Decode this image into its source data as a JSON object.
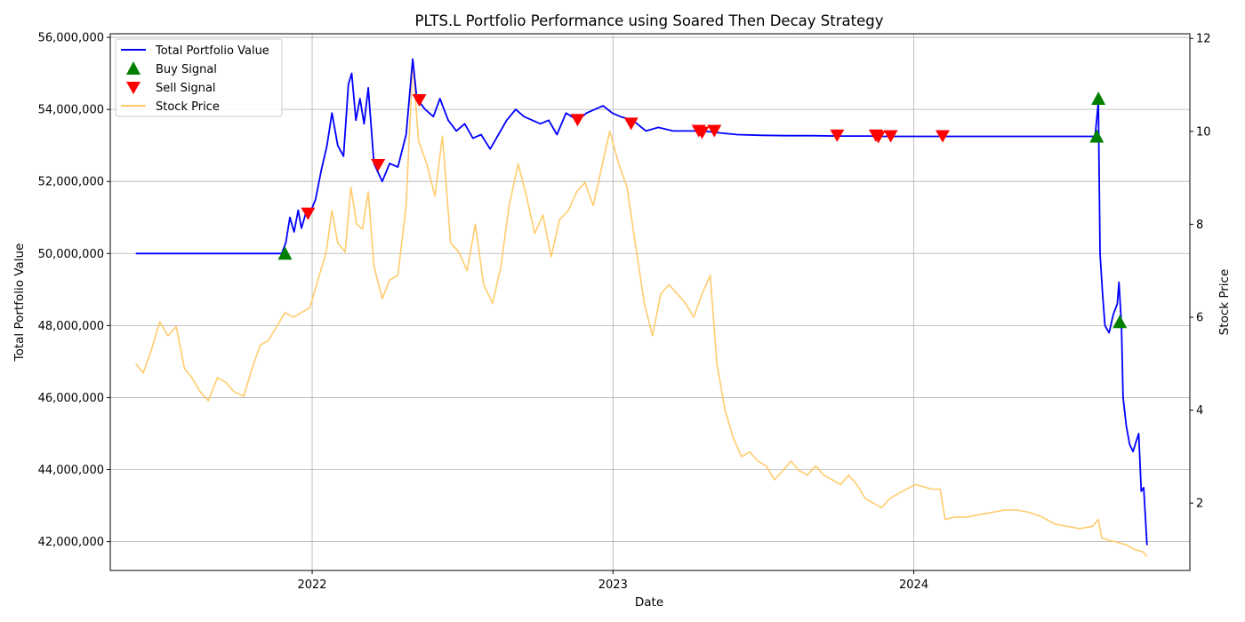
{
  "chart_data": {
    "type": "line",
    "title": "PLTS.L Portfolio Performance using Soared Then Decay Strategy",
    "xlabel": "Date",
    "ylabel_left": "Total Portfolio Value",
    "ylabel_right": "Stock Price",
    "x_ticks": [
      "2022",
      "2023",
      "2024"
    ],
    "x_range": [
      "2021-05-01",
      "2024-12-01"
    ],
    "ylim_left": [
      41200000,
      56100000
    ],
    "ylim_right": [
      0.55,
      12.1
    ],
    "y_ticks_left": [
      {
        "value": 42000000,
        "label": "42,000,000"
      },
      {
        "value": 44000000,
        "label": "44,000,000"
      },
      {
        "value": 46000000,
        "label": "46,000,000"
      },
      {
        "value": 48000000,
        "label": "48,000,000"
      },
      {
        "value": 50000000,
        "label": "50,000,000"
      },
      {
        "value": 52000000,
        "label": "52,000,000"
      },
      {
        "value": 54000000,
        "label": "54,000,000"
      },
      {
        "value": 56000000,
        "label": "56,000,000"
      }
    ],
    "y_ticks_right": [
      {
        "value": 2,
        "label": "2"
      },
      {
        "value": 4,
        "label": "4"
      },
      {
        "value": 6,
        "label": "6"
      },
      {
        "value": 8,
        "label": "8"
      },
      {
        "value": 10,
        "label": "10"
      },
      {
        "value": 12,
        "label": "12"
      }
    ],
    "grid": true,
    "legend_position": "top-left",
    "legend": [
      "Total Portfolio Value",
      "Buy Signal",
      "Sell Signal",
      "Stock Price"
    ],
    "colors": {
      "portfolio": "#0000ff",
      "stock": "#ffc966",
      "buy": "#008000",
      "sell": "#ff0000",
      "grid": "#b0b0b0"
    },
    "series": [
      {
        "name": "Total Portfolio Value",
        "axis": "left",
        "points": [
          [
            "2021-06-01",
            50000000
          ],
          [
            "2021-11-25",
            50000000
          ],
          [
            "2021-11-30",
            50300000
          ],
          [
            "2021-12-05",
            51000000
          ],
          [
            "2021-12-10",
            50600000
          ],
          [
            "2021-12-15",
            51200000
          ],
          [
            "2021-12-19",
            50700000
          ],
          [
            "2021-12-24",
            51100000
          ],
          [
            "2021-12-29",
            51100000
          ],
          [
            "2022-01-05",
            51500000
          ],
          [
            "2022-01-12",
            52300000
          ],
          [
            "2022-01-19",
            53000000
          ],
          [
            "2022-01-25",
            53900000
          ],
          [
            "2022-02-01",
            53000000
          ],
          [
            "2022-02-08",
            52700000
          ],
          [
            "2022-02-14",
            54700000
          ],
          [
            "2022-02-18",
            55000000
          ],
          [
            "2022-02-23",
            53700000
          ],
          [
            "2022-02-28",
            54300000
          ],
          [
            "2022-03-05",
            53600000
          ],
          [
            "2022-03-10",
            54600000
          ],
          [
            "2022-03-17",
            52500000
          ],
          [
            "2022-03-27",
            52000000
          ],
          [
            "2022-04-05",
            52500000
          ],
          [
            "2022-04-15",
            52400000
          ],
          [
            "2022-04-25",
            53300000
          ],
          [
            "2022-05-03",
            55400000
          ],
          [
            "2022-05-08",
            54300000
          ],
          [
            "2022-05-18",
            54000000
          ],
          [
            "2022-05-28",
            53800000
          ],
          [
            "2022-06-05",
            54300000
          ],
          [
            "2022-06-15",
            53700000
          ],
          [
            "2022-06-25",
            53400000
          ],
          [
            "2022-07-05",
            53600000
          ],
          [
            "2022-07-15",
            53200000
          ],
          [
            "2022-07-25",
            53300000
          ],
          [
            "2022-08-05",
            52900000
          ],
          [
            "2022-08-15",
            53300000
          ],
          [
            "2022-08-25",
            53700000
          ],
          [
            "2022-09-05",
            54000000
          ],
          [
            "2022-09-15",
            53800000
          ],
          [
            "2022-09-25",
            53700000
          ],
          [
            "2022-10-05",
            53600000
          ],
          [
            "2022-10-15",
            53700000
          ],
          [
            "2022-10-25",
            53300000
          ],
          [
            "2022-11-05",
            53900000
          ],
          [
            "2022-11-19",
            53700000
          ],
          [
            "2022-11-30",
            53900000
          ],
          [
            "2022-12-10",
            54000000
          ],
          [
            "2022-12-20",
            54100000
          ],
          [
            "2022-12-31",
            53900000
          ],
          [
            "2023-01-10",
            53800000
          ],
          [
            "2023-01-25",
            53700000
          ],
          [
            "2023-02-10",
            53400000
          ],
          [
            "2023-02-25",
            53500000
          ],
          [
            "2023-03-15",
            53400000
          ],
          [
            "2023-04-01",
            53400000
          ],
          [
            "2023-04-20",
            53400000
          ],
          [
            "2023-05-10",
            53350000
          ],
          [
            "2023-06-01",
            53300000
          ],
          [
            "2023-07-01",
            53280000
          ],
          [
            "2023-08-01",
            53270000
          ],
          [
            "2023-09-01",
            53270000
          ],
          [
            "2023-09-30",
            53260000
          ],
          [
            "2023-11-08",
            53260000
          ],
          [
            "2023-11-24",
            53250000
          ],
          [
            "2024-02-05",
            53250000
          ],
          [
            "2024-08-08",
            53250000
          ],
          [
            "2024-08-12",
            54200000
          ],
          [
            "2024-08-14",
            50000000
          ],
          [
            "2024-08-17",
            48900000
          ],
          [
            "2024-08-20",
            48000000
          ],
          [
            "2024-08-25",
            47800000
          ],
          [
            "2024-08-30",
            48300000
          ],
          [
            "2024-09-04",
            48600000
          ],
          [
            "2024-09-06",
            49200000
          ],
          [
            "2024-09-09",
            48000000
          ],
          [
            "2024-09-11",
            46000000
          ],
          [
            "2024-09-15",
            45200000
          ],
          [
            "2024-09-19",
            44700000
          ],
          [
            "2024-09-23",
            44500000
          ],
          [
            "2024-09-27",
            44800000
          ],
          [
            "2024-09-30",
            45000000
          ],
          [
            "2024-10-03",
            43400000
          ],
          [
            "2024-10-06",
            43500000
          ],
          [
            "2024-10-10",
            41900000
          ]
        ]
      },
      {
        "name": "Stock Price",
        "axis": "right",
        "points": [
          [
            "2021-06-01",
            5.0
          ],
          [
            "2021-06-10",
            4.8
          ],
          [
            "2021-06-20",
            5.3
          ],
          [
            "2021-06-30",
            5.9
          ],
          [
            "2021-07-10",
            5.6
          ],
          [
            "2021-07-20",
            5.8
          ],
          [
            "2021-07-30",
            4.9
          ],
          [
            "2021-08-08",
            4.7
          ],
          [
            "2021-08-18",
            4.4
          ],
          [
            "2021-08-28",
            4.2
          ],
          [
            "2021-09-08",
            4.7
          ],
          [
            "2021-09-18",
            4.6
          ],
          [
            "2021-09-28",
            4.4
          ],
          [
            "2021-10-10",
            4.3
          ],
          [
            "2021-10-20",
            4.9
          ],
          [
            "2021-10-30",
            5.4
          ],
          [
            "2021-11-09",
            5.5
          ],
          [
            "2021-11-19",
            5.8
          ],
          [
            "2021-11-29",
            6.1
          ],
          [
            "2021-12-09",
            6.0
          ],
          [
            "2021-12-19",
            6.1
          ],
          [
            "2021-12-29",
            6.2
          ],
          [
            "2022-01-08",
            6.8
          ],
          [
            "2022-01-18",
            7.4
          ],
          [
            "2022-01-25",
            8.3
          ],
          [
            "2022-02-01",
            7.6
          ],
          [
            "2022-02-10",
            7.4
          ],
          [
            "2022-02-17",
            8.8
          ],
          [
            "2022-02-24",
            8.0
          ],
          [
            "2022-03-03",
            7.9
          ],
          [
            "2022-03-10",
            8.7
          ],
          [
            "2022-03-17",
            7.1
          ],
          [
            "2022-03-27",
            6.4
          ],
          [
            "2022-04-05",
            6.8
          ],
          [
            "2022-04-15",
            6.9
          ],
          [
            "2022-04-25",
            8.4
          ],
          [
            "2022-05-03",
            11.5
          ],
          [
            "2022-05-10",
            9.8
          ],
          [
            "2022-05-20",
            9.3
          ],
          [
            "2022-05-30",
            8.6
          ],
          [
            "2022-06-08",
            9.9
          ],
          [
            "2022-06-18",
            7.6
          ],
          [
            "2022-06-28",
            7.4
          ],
          [
            "2022-07-08",
            7.0
          ],
          [
            "2022-07-18",
            8.0
          ],
          [
            "2022-07-28",
            6.7
          ],
          [
            "2022-08-08",
            6.3
          ],
          [
            "2022-08-18",
            7.1
          ],
          [
            "2022-08-28",
            8.4
          ],
          [
            "2022-09-08",
            9.3
          ],
          [
            "2022-09-18",
            8.6
          ],
          [
            "2022-09-28",
            7.8
          ],
          [
            "2022-10-08",
            8.2
          ],
          [
            "2022-10-18",
            7.3
          ],
          [
            "2022-10-28",
            8.1
          ],
          [
            "2022-11-08",
            8.3
          ],
          [
            "2022-11-18",
            8.7
          ],
          [
            "2022-11-28",
            8.9
          ],
          [
            "2022-12-08",
            8.4
          ],
          [
            "2022-12-18",
            9.2
          ],
          [
            "2022-12-28",
            10.0
          ],
          [
            "2023-01-08",
            9.3
          ],
          [
            "2023-01-18",
            8.8
          ],
          [
            "2023-01-28",
            7.6
          ],
          [
            "2023-02-08",
            6.3
          ],
          [
            "2023-02-18",
            5.6
          ],
          [
            "2023-02-28",
            6.5
          ],
          [
            "2023-03-10",
            6.7
          ],
          [
            "2023-03-20",
            6.5
          ],
          [
            "2023-03-30",
            6.3
          ],
          [
            "2023-04-09",
            6.0
          ],
          [
            "2023-04-19",
            6.5
          ],
          [
            "2023-04-29",
            6.9
          ],
          [
            "2023-05-07",
            5.0
          ],
          [
            "2023-05-17",
            4.0
          ],
          [
            "2023-05-27",
            3.4
          ],
          [
            "2023-06-06",
            3.0
          ],
          [
            "2023-06-16",
            3.1
          ],
          [
            "2023-06-26",
            2.9
          ],
          [
            "2023-07-06",
            2.8
          ],
          [
            "2023-07-16",
            2.5
          ],
          [
            "2023-07-26",
            2.7
          ],
          [
            "2023-08-05",
            2.9
          ],
          [
            "2023-08-15",
            2.7
          ],
          [
            "2023-08-25",
            2.6
          ],
          [
            "2023-09-04",
            2.8
          ],
          [
            "2023-09-14",
            2.6
          ],
          [
            "2023-09-24",
            2.5
          ],
          [
            "2023-10-04",
            2.4
          ],
          [
            "2023-10-14",
            2.6
          ],
          [
            "2023-10-24",
            2.4
          ],
          [
            "2023-11-03",
            2.1
          ],
          [
            "2023-11-13",
            2.0
          ],
          [
            "2023-11-23",
            1.9
          ],
          [
            "2023-12-03",
            2.1
          ],
          [
            "2023-12-13",
            2.2
          ],
          [
            "2023-12-23",
            2.3
          ],
          [
            "2024-01-03",
            2.4
          ],
          [
            "2024-01-13",
            2.35
          ],
          [
            "2024-01-23",
            2.3
          ],
          [
            "2024-02-02",
            2.3
          ],
          [
            "2024-02-08",
            1.65
          ],
          [
            "2024-02-20",
            1.7
          ],
          [
            "2024-03-05",
            1.7
          ],
          [
            "2024-03-20",
            1.75
          ],
          [
            "2024-04-05",
            1.8
          ],
          [
            "2024-04-20",
            1.85
          ],
          [
            "2024-05-05",
            1.85
          ],
          [
            "2024-05-20",
            1.8
          ],
          [
            "2024-06-05",
            1.7
          ],
          [
            "2024-06-20",
            1.55
          ],
          [
            "2024-07-05",
            1.5
          ],
          [
            "2024-07-20",
            1.45
          ],
          [
            "2024-08-05",
            1.5
          ],
          [
            "2024-08-12",
            1.65
          ],
          [
            "2024-08-16",
            1.25
          ],
          [
            "2024-08-25",
            1.2
          ],
          [
            "2024-09-05",
            1.15
          ],
          [
            "2024-09-15",
            1.1
          ],
          [
            "2024-09-25",
            1.0
          ],
          [
            "2024-10-05",
            0.95
          ],
          [
            "2024-10-10",
            0.85
          ]
        ]
      }
    ],
    "buy_signals": [
      [
        "2021-11-29",
        50000000
      ],
      [
        "2024-08-10",
        53250000
      ],
      [
        "2024-08-12",
        54300000
      ],
      [
        "2024-09-07",
        48100000
      ]
    ],
    "sell_signals": [
      [
        "2021-12-27",
        51100000
      ],
      [
        "2022-03-22",
        52450000
      ],
      [
        "2022-05-11",
        54250000
      ],
      [
        "2022-11-19",
        53700000
      ],
      [
        "2023-01-23",
        53600000
      ],
      [
        "2023-04-15",
        53400000
      ],
      [
        "2023-04-19",
        53350000
      ],
      [
        "2023-05-04",
        53400000
      ],
      [
        "2023-09-30",
        53270000
      ],
      [
        "2023-11-16",
        53270000
      ],
      [
        "2023-11-19",
        53230000
      ],
      [
        "2023-12-04",
        53250000
      ],
      [
        "2024-02-05",
        53250000
      ]
    ]
  }
}
